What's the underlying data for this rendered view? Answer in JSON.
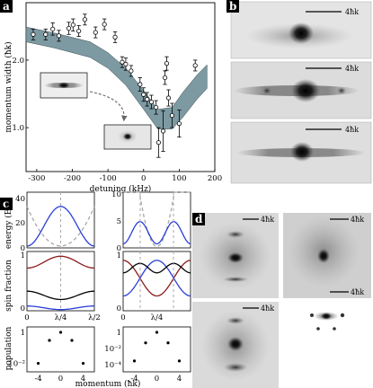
{
  "panels": {
    "a": "a",
    "b": "b",
    "c": "c",
    "d": "d"
  },
  "panel_a": {
    "ylabel": "momentum width (ħk)",
    "xlabel": "detuning (kHz)",
    "xticks": [
      "-300",
      "-200",
      "-100",
      "0",
      "100",
      "200"
    ],
    "yticks": [
      "1.0",
      "2.0"
    ],
    "band_color": "#7d9aa3"
  },
  "chart_data": {
    "type": "scatter",
    "xlabel": "detuning (kHz)",
    "ylabel": "momentum width (ħk)",
    "xlim": [
      -330,
      200
    ],
    "ylim": [
      0.35,
      2.85
    ],
    "points": [
      {
        "x": -310,
        "y": 2.38,
        "err": 0.08
      },
      {
        "x": -275,
        "y": 2.38,
        "err": 0.08
      },
      {
        "x": -255,
        "y": 2.46,
        "err": 0.09
      },
      {
        "x": -238,
        "y": 2.36,
        "err": 0.08
      },
      {
        "x": -210,
        "y": 2.47,
        "err": 0.09
      },
      {
        "x": -198,
        "y": 2.52,
        "err": 0.09
      },
      {
        "x": -182,
        "y": 2.43,
        "err": 0.08
      },
      {
        "x": -165,
        "y": 2.6,
        "err": 0.08
      },
      {
        "x": -135,
        "y": 2.41,
        "err": 0.08
      },
      {
        "x": -110,
        "y": 2.53,
        "err": 0.08
      },
      {
        "x": -80,
        "y": 2.34,
        "err": 0.08
      },
      {
        "x": -60,
        "y": 1.97,
        "err": 0.08
      },
      {
        "x": -50,
        "y": 1.94,
        "err": 0.09
      },
      {
        "x": -35,
        "y": 1.84,
        "err": 0.08
      },
      {
        "x": -10,
        "y": 1.64,
        "err": 0.1
      },
      {
        "x": 0,
        "y": 1.49,
        "err": 0.1
      },
      {
        "x": 10,
        "y": 1.42,
        "err": 0.1
      },
      {
        "x": 22,
        "y": 1.38,
        "err": 0.1
      },
      {
        "x": 35,
        "y": 1.3,
        "err": 0.1
      },
      {
        "x": 42,
        "y": 0.78,
        "err": 0.22
      },
      {
        "x": 55,
        "y": 0.95,
        "err": 0.3
      },
      {
        "x": 60,
        "y": 1.74,
        "err": 0.1
      },
      {
        "x": 65,
        "y": 1.95,
        "err": 0.1
      },
      {
        "x": 70,
        "y": 1.44,
        "err": 0.12
      },
      {
        "x": 80,
        "y": 1.18,
        "err": 0.18
      },
      {
        "x": 100,
        "y": 1.06,
        "err": 0.2
      },
      {
        "x": 145,
        "y": 1.92,
        "err": 0.08
      }
    ],
    "band_upper": [
      [
        -330,
        2.49
      ],
      [
        -250,
        2.4
      ],
      [
        -150,
        2.27
      ],
      [
        -100,
        2.11
      ],
      [
        -50,
        1.88
      ],
      [
        0,
        1.55
      ],
      [
        40,
        1.27
      ],
      [
        80,
        1.3
      ],
      [
        110,
        1.52
      ],
      [
        150,
        1.78
      ],
      [
        178,
        1.93
      ]
    ],
    "band_lower": [
      [
        -330,
        2.27
      ],
      [
        -250,
        2.18
      ],
      [
        -150,
        2.04
      ],
      [
        -100,
        1.88
      ],
      [
        -50,
        1.63
      ],
      [
        0,
        1.27
      ],
      [
        40,
        0.98
      ],
      [
        80,
        0.98
      ],
      [
        110,
        1.15
      ],
      [
        150,
        1.42
      ],
      [
        178,
        1.58
      ]
    ]
  },
  "panel_b": {
    "scale_label": "4ħk"
  },
  "panel_c": {
    "energy_label": "energy (Er)",
    "spin_label": "spin fraction",
    "pop_label": "population",
    "xlabel": "momentum (ħk)",
    "left": {
      "energy_ticks": [
        "40",
        "20",
        "0"
      ],
      "spin_ticks": [
        "1",
        "0"
      ],
      "x_ticks": [
        "0",
        "λ/4",
        "λ/2"
      ],
      "pop_ticks": [
        "1",
        "10⁻²"
      ],
      "mom_ticks": [
        "-4",
        "0",
        "4"
      ],
      "pop_points": [
        {
          "k": -4,
          "p": 0.01
        },
        {
          "k": -2,
          "p": 0.3
        },
        {
          "k": 0,
          "p": 1
        },
        {
          "k": 2,
          "p": 0.3
        },
        {
          "k": 4,
          "p": 0.01
        }
      ]
    },
    "right": {
      "energy_ticks": [
        "10",
        "5",
        "0"
      ],
      "spin_ticks": [
        "1",
        "0"
      ],
      "x_ticks": [
        "0",
        "λ/4"
      ],
      "pop_ticks": [
        "1",
        "10⁻²",
        "10⁻⁴"
      ],
      "mom_ticks": [
        "-4",
        "0",
        "4"
      ],
      "pop_points": [
        {
          "k": -4,
          "p": 0.0003
        },
        {
          "k": -2,
          "p": 0.05
        },
        {
          "k": 0,
          "p": 1
        },
        {
          "k": 2,
          "p": 0.05
        },
        {
          "k": 4,
          "p": 0.0003
        }
      ]
    },
    "colors": {
      "blue": "#2a3fd8",
      "red": "#8b1a1a",
      "black": "#000000",
      "gray": "#a8a8a8"
    }
  },
  "panel_d": {
    "scale_label": "4ħk"
  }
}
